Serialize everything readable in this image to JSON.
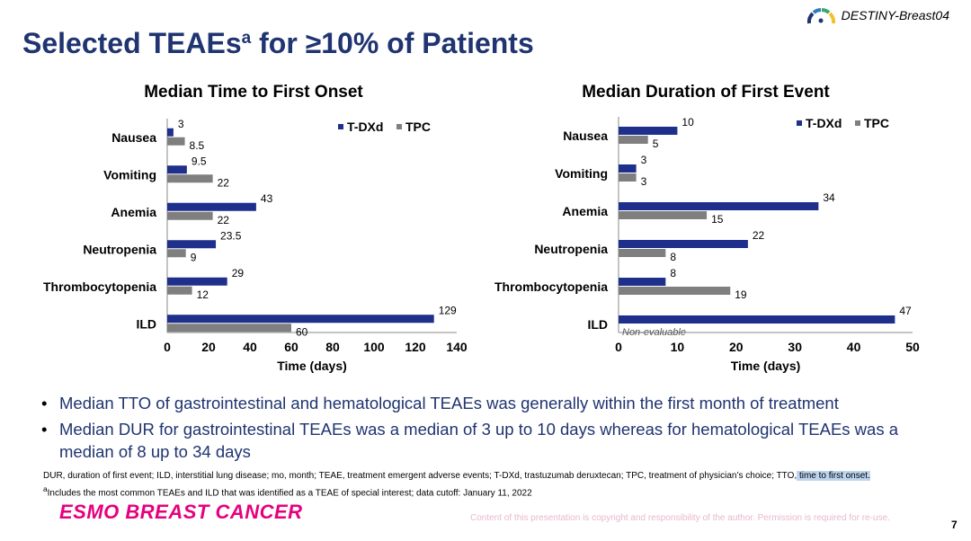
{
  "header": {
    "title_main": "Selected TEAEs",
    "title_sup": "a",
    "title_rest": " for ≥10% of Patients",
    "brand": "DESTINY-Breast04",
    "brand_icon": "fan-arc-icon"
  },
  "chart_data": [
    {
      "type": "bar",
      "orientation": "horizontal",
      "title": "Median Time to First Onset",
      "xlabel": "Time (days)",
      "ylabel": "",
      "xlim": [
        0,
        140
      ],
      "xticks": [
        "0",
        "20",
        "40",
        "60",
        "80",
        "100",
        "120",
        "140"
      ],
      "categories": [
        "Nausea",
        "Vomiting",
        "Anemia",
        "Neutropenia",
        "Thrombocytopenia",
        "ILD"
      ],
      "series": [
        {
          "name": "T-DXd",
          "color": "#1f2f8c",
          "values": [
            3,
            9.5,
            43,
            23.5,
            29,
            129
          ],
          "labels": [
            "3",
            "9.5",
            "43",
            "23.5",
            "29",
            "129"
          ]
        },
        {
          "name": "TPC",
          "color": "#7f7f7f",
          "values": [
            8.5,
            22,
            22,
            9,
            12,
            60
          ],
          "labels": [
            "8.5",
            "22",
            "22",
            "9",
            "12",
            "60"
          ]
        }
      ],
      "legend": "top-right",
      "annotations": []
    },
    {
      "type": "bar",
      "orientation": "horizontal",
      "title": "Median Duration of First Event",
      "xlabel": "Time (days)",
      "ylabel": "",
      "xlim": [
        0,
        50
      ],
      "xticks": [
        "0",
        "10",
        "20",
        "30",
        "40",
        "50"
      ],
      "categories": [
        "Nausea",
        "Vomiting",
        "Anemia",
        "Neutropenia",
        "Thrombocytopenia",
        "ILD"
      ],
      "series": [
        {
          "name": "T-DXd",
          "color": "#1f2f8c",
          "values": [
            10,
            3,
            34,
            22,
            8,
            47
          ],
          "labels": [
            "10",
            "3",
            "34",
            "22",
            "8",
            "47"
          ]
        },
        {
          "name": "TPC",
          "color": "#7f7f7f",
          "values": [
            5,
            3,
            15,
            8,
            19,
            null
          ],
          "labels": [
            "5",
            "3",
            "15",
            "8",
            "19",
            ""
          ]
        }
      ],
      "legend": "top-right",
      "annotations": [
        "Non-evaluable"
      ]
    }
  ],
  "bullets": [
    "Median TTO of gastrointestinal and hematological TEAEs was generally within the first month of treatment",
    "Median DUR for gastrointestinal TEAEs was a median of 3 up to 10 days whereas for hematological TEAEs was a median of 8 up to 34 days"
  ],
  "footnotes": {
    "line1": "DUR, duration of first event; ILD, interstitial lung disease; mo, month; TEAE, treatment emergent adverse events; T-DXd, trastuzumab deruxtecan; TPC, treatment of physician’s choice; TTO,",
    "line1_highlight": " time to first onset.",
    "line2_sup": "a",
    "line2": "Includes the most common TEAEs and ILD that was identified as a TEAE of special interest; data cutoff: January 11, 2022"
  },
  "footer": {
    "conference": "ESMO BREAST CANCER",
    "copyright": "Content of this presentation is copyright and responsibility of the author. Permission is required for re-use.",
    "page": "7"
  }
}
